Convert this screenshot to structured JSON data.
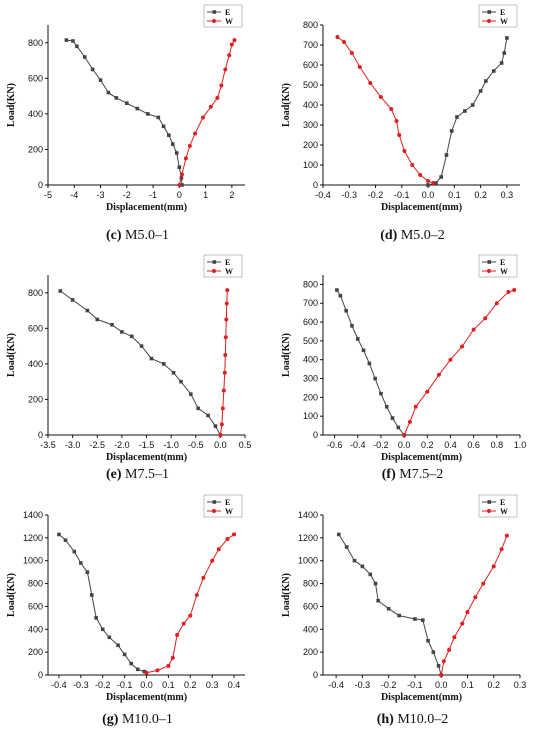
{
  "colors": {
    "E": "#444444",
    "W": "#e02020"
  },
  "chart_data": [
    {
      "type": "line",
      "caption_letter": "(c)",
      "caption_name": "M5.0–1",
      "xlabel": "Displacement(mm)",
      "ylabel": "Load(KN)",
      "xlim": [
        -5,
        2.5
      ],
      "ylim": [
        0,
        900
      ],
      "xticks": [
        -5,
        -4,
        -3,
        -2,
        -1,
        0,
        1,
        2
      ],
      "yticks": [
        0,
        200,
        400,
        600,
        800
      ],
      "legend": [
        "E",
        "W"
      ],
      "series": [
        {
          "name": "E",
          "points": [
            [
              -4.3,
              815
            ],
            [
              -4.05,
              810
            ],
            [
              -3.9,
              780
            ],
            [
              -3.6,
              720
            ],
            [
              -3.3,
              650
            ],
            [
              -3.0,
              590
            ],
            [
              -2.7,
              520
            ],
            [
              -2.4,
              490
            ],
            [
              -2.0,
              460
            ],
            [
              -1.6,
              430
            ],
            [
              -1.2,
              400
            ],
            [
              -0.8,
              380
            ],
            [
              -0.6,
              330
            ],
            [
              -0.4,
              280
            ],
            [
              -0.25,
              230
            ],
            [
              -0.1,
              180
            ],
            [
              0.0,
              100
            ],
            [
              0.08,
              40
            ],
            [
              0.1,
              0
            ]
          ]
        },
        {
          "name": "W",
          "points": [
            [
              0.0,
              0
            ],
            [
              0.1,
              60
            ],
            [
              0.25,
              150
            ],
            [
              0.4,
              220
            ],
            [
              0.6,
              290
            ],
            [
              0.9,
              380
            ],
            [
              1.2,
              440
            ],
            [
              1.45,
              490
            ],
            [
              1.6,
              560
            ],
            [
              1.75,
              650
            ],
            [
              1.9,
              730
            ],
            [
              2.0,
              790
            ],
            [
              2.1,
              815
            ]
          ]
        }
      ]
    },
    {
      "type": "line",
      "caption_letter": "(d)",
      "caption_name": "M5.0–2",
      "xlabel": "Displacement(mm)",
      "ylabel": "Load(KN)",
      "xlim": [
        -0.4,
        0.35
      ],
      "ylim": [
        0,
        800
      ],
      "xticks": [
        -0.4,
        -0.3,
        -0.2,
        -0.1,
        0.0,
        0.1,
        0.2,
        0.3
      ],
      "yticks": [
        0,
        100,
        200,
        300,
        400,
        500,
        600,
        700,
        800
      ],
      "legend": [
        "E",
        "W"
      ],
      "series": [
        {
          "name": "E",
          "points": [
            [
              0.0,
              0
            ],
            [
              0.03,
              10
            ],
            [
              0.05,
              40
            ],
            [
              0.07,
              150
            ],
            [
              0.09,
              270
            ],
            [
              0.11,
              340
            ],
            [
              0.14,
              370
            ],
            [
              0.17,
              400
            ],
            [
              0.2,
              470
            ],
            [
              0.22,
              520
            ],
            [
              0.25,
              570
            ],
            [
              0.28,
              610
            ],
            [
              0.29,
              660
            ],
            [
              0.3,
              735
            ]
          ]
        },
        {
          "name": "W",
          "points": [
            [
              -0.345,
              740
            ],
            [
              -0.32,
              715
            ],
            [
              -0.29,
              660
            ],
            [
              -0.26,
              590
            ],
            [
              -0.22,
              510
            ],
            [
              -0.18,
              440
            ],
            [
              -0.14,
              380
            ],
            [
              -0.12,
              320
            ],
            [
              -0.11,
              250
            ],
            [
              -0.09,
              170
            ],
            [
              -0.06,
              100
            ],
            [
              -0.03,
              50
            ],
            [
              0.0,
              20
            ],
            [
              0.02,
              10
            ]
          ]
        }
      ]
    },
    {
      "type": "line",
      "caption_letter": "(e)",
      "caption_name": "M7.5–1",
      "xlabel": "Displacement(mm)",
      "ylabel": "Load(KN)",
      "xlim": [
        -3.5,
        0.5
      ],
      "ylim": [
        0,
        900
      ],
      "xticks": [
        -3.5,
        -3.0,
        -2.5,
        -2.0,
        -1.5,
        -1.0,
        -0.5,
        0.0,
        0.5
      ],
      "yticks": [
        0,
        200,
        400,
        600,
        800
      ],
      "legend": [
        "E",
        "W"
      ],
      "series": [
        {
          "name": "E",
          "points": [
            [
              -3.25,
              810
            ],
            [
              -3.0,
              760
            ],
            [
              -2.7,
              700
            ],
            [
              -2.5,
              650
            ],
            [
              -2.2,
              620
            ],
            [
              -2.0,
              580
            ],
            [
              -1.8,
              555
            ],
            [
              -1.6,
              500
            ],
            [
              -1.4,
              430
            ],
            [
              -1.15,
              400
            ],
            [
              -0.95,
              350
            ],
            [
              -0.8,
              300
            ],
            [
              -0.6,
              230
            ],
            [
              -0.45,
              150
            ],
            [
              -0.25,
              110
            ],
            [
              -0.1,
              50
            ],
            [
              0.0,
              0
            ]
          ]
        },
        {
          "name": "W",
          "points": [
            [
              0.0,
              0
            ],
            [
              0.03,
              60
            ],
            [
              0.05,
              150
            ],
            [
              0.07,
              250
            ],
            [
              0.09,
              350
            ],
            [
              0.1,
              450
            ],
            [
              0.11,
              550
            ],
            [
              0.12,
              650
            ],
            [
              0.13,
              740
            ],
            [
              0.14,
              815
            ]
          ]
        }
      ]
    },
    {
      "type": "line",
      "caption_letter": "(f)",
      "caption_name": "M7.5–2",
      "xlabel": "Displacement(mm)",
      "ylabel": "Load(KN)",
      "xlim": [
        -0.7,
        1.0
      ],
      "ylim": [
        0,
        850
      ],
      "xticks": [
        -0.6,
        -0.4,
        -0.2,
        0.0,
        0.2,
        0.4,
        0.6,
        0.8,
        1.0
      ],
      "yticks": [
        0,
        100,
        200,
        300,
        400,
        500,
        600,
        700,
        800
      ],
      "legend": [
        "E",
        "W"
      ],
      "series": [
        {
          "name": "E",
          "points": [
            [
              -0.58,
              770
            ],
            [
              -0.55,
              740
            ],
            [
              -0.5,
              660
            ],
            [
              -0.45,
              580
            ],
            [
              -0.4,
              510
            ],
            [
              -0.35,
              450
            ],
            [
              -0.3,
              380
            ],
            [
              -0.25,
              300
            ],
            [
              -0.2,
              220
            ],
            [
              -0.15,
              150
            ],
            [
              -0.1,
              90
            ],
            [
              -0.05,
              40
            ],
            [
              0.0,
              0
            ]
          ]
        },
        {
          "name": "W",
          "points": [
            [
              0.0,
              0
            ],
            [
              0.05,
              70
            ],
            [
              0.1,
              150
            ],
            [
              0.2,
              230
            ],
            [
              0.3,
              320
            ],
            [
              0.4,
              400
            ],
            [
              0.5,
              470
            ],
            [
              0.6,
              560
            ],
            [
              0.7,
              620
            ],
            [
              0.8,
              700
            ],
            [
              0.9,
              760
            ],
            [
              0.95,
              770
            ]
          ]
        }
      ]
    },
    {
      "type": "line",
      "caption_letter": "(g)",
      "caption_name": "M10.0–1",
      "xlabel": "Displacement(mm)",
      "ylabel": "Load(KN)",
      "xlim": [
        -0.45,
        0.45
      ],
      "ylim": [
        0,
        1400
      ],
      "xticks": [
        -0.4,
        -0.3,
        -0.2,
        -0.1,
        0.0,
        0.1,
        0.2,
        0.3,
        0.4
      ],
      "yticks": [
        0,
        200,
        400,
        600,
        800,
        1000,
        1200,
        1400
      ],
      "legend": [
        "E",
        "W"
      ],
      "series": [
        {
          "name": "E",
          "points": [
            [
              -0.4,
              1230
            ],
            [
              -0.37,
              1180
            ],
            [
              -0.33,
              1080
            ],
            [
              -0.3,
              980
            ],
            [
              -0.27,
              900
            ],
            [
              -0.25,
              700
            ],
            [
              -0.23,
              500
            ],
            [
              -0.2,
              400
            ],
            [
              -0.17,
              330
            ],
            [
              -0.13,
              260
            ],
            [
              -0.1,
              180
            ],
            [
              -0.07,
              100
            ],
            [
              -0.04,
              50
            ],
            [
              -0.01,
              30
            ]
          ]
        },
        {
          "name": "W",
          "points": [
            [
              0.0,
              20
            ],
            [
              0.05,
              40
            ],
            [
              0.1,
              80
            ],
            [
              0.12,
              150
            ],
            [
              0.14,
              350
            ],
            [
              0.17,
              450
            ],
            [
              0.2,
              520
            ],
            [
              0.23,
              700
            ],
            [
              0.26,
              850
            ],
            [
              0.3,
              1000
            ],
            [
              0.33,
              1100
            ],
            [
              0.37,
              1190
            ],
            [
              0.4,
              1230
            ]
          ]
        }
      ]
    },
    {
      "type": "line",
      "caption_letter": "(h)",
      "caption_name": "M10.0–2",
      "xlabel": "Displacement(mm)",
      "ylabel": "Load(KN)",
      "xlim": [
        -0.45,
        0.3
      ],
      "ylim": [
        0,
        1400
      ],
      "xticks": [
        -0.4,
        -0.3,
        -0.2,
        -0.1,
        0.0,
        0.1,
        0.2,
        0.3
      ],
      "yticks": [
        0,
        200,
        400,
        600,
        800,
        1000,
        1200,
        1400
      ],
      "legend": [
        "E",
        "W"
      ],
      "series": [
        {
          "name": "E",
          "points": [
            [
              -0.39,
              1230
            ],
            [
              -0.36,
              1120
            ],
            [
              -0.33,
              1000
            ],
            [
              -0.3,
              950
            ],
            [
              -0.27,
              880
            ],
            [
              -0.25,
              800
            ],
            [
              -0.24,
              650
            ],
            [
              -0.2,
              580
            ],
            [
              -0.16,
              520
            ],
            [
              -0.1,
              490
            ],
            [
              -0.07,
              480
            ],
            [
              -0.05,
              300
            ],
            [
              -0.03,
              200
            ],
            [
              -0.01,
              80
            ],
            [
              0.0,
              0
            ]
          ]
        },
        {
          "name": "W",
          "points": [
            [
              0.0,
              0
            ],
            [
              0.01,
              120
            ],
            [
              0.03,
              220
            ],
            [
              0.05,
              330
            ],
            [
              0.08,
              450
            ],
            [
              0.1,
              550
            ],
            [
              0.13,
              680
            ],
            [
              0.16,
              800
            ],
            [
              0.2,
              950
            ],
            [
              0.23,
              1100
            ],
            [
              0.25,
              1220
            ]
          ]
        }
      ]
    }
  ]
}
